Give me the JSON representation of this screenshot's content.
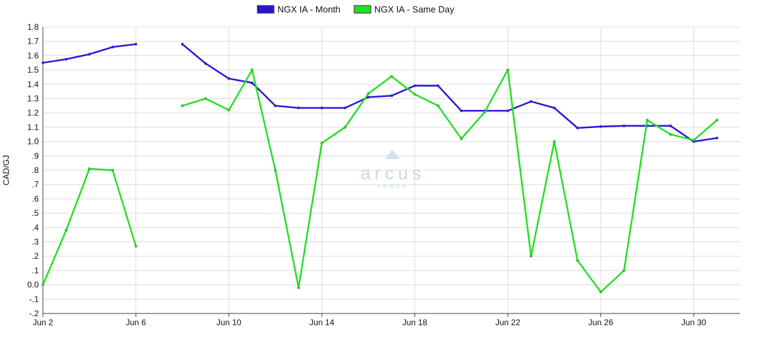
{
  "chart_data": {
    "type": "line",
    "ylabel": "CAD/GJ",
    "ylim": [
      -0.2,
      1.8
    ],
    "yticks": [
      {
        "value": 1.8,
        "label": "1.8"
      },
      {
        "value": 1.7,
        "label": "1.7"
      },
      {
        "value": 1.6,
        "label": "1.6"
      },
      {
        "value": 1.5,
        "label": "1.5"
      },
      {
        "value": 1.4,
        "label": "1.4"
      },
      {
        "value": 1.3,
        "label": "1.3"
      },
      {
        "value": 1.2,
        "label": "1.2"
      },
      {
        "value": 1.1,
        "label": "1.1"
      },
      {
        "value": 1.0,
        "label": "1.0"
      },
      {
        "value": 0.9,
        "label": ".9"
      },
      {
        "value": 0.8,
        "label": ".8"
      },
      {
        "value": 0.7,
        "label": ".7"
      },
      {
        "value": 0.6,
        "label": ".6"
      },
      {
        "value": 0.5,
        "label": ".5"
      },
      {
        "value": 0.4,
        "label": ".4"
      },
      {
        "value": 0.3,
        "label": ".3"
      },
      {
        "value": 0.2,
        "label": ".2"
      },
      {
        "value": 0.1,
        "label": ".1"
      },
      {
        "value": 0.0,
        "label": "0.0"
      },
      {
        "value": -0.1,
        "label": "-.1"
      },
      {
        "value": -0.2,
        "label": "-.2"
      }
    ],
    "xlim": [
      2,
      32
    ],
    "xticks": [
      {
        "day": 2,
        "label": "Jun 2"
      },
      {
        "day": 6,
        "label": "Jun 6"
      },
      {
        "day": 10,
        "label": "Jun 10"
      },
      {
        "day": 14,
        "label": "Jun 14"
      },
      {
        "day": 18,
        "label": "Jun 18"
      },
      {
        "day": 22,
        "label": "Jun 22"
      },
      {
        "day": 26,
        "label": "Jun 26"
      },
      {
        "day": 30,
        "label": "Jun 30"
      }
    ],
    "grid": true,
    "legend_position": "top-center",
    "series": [
      {
        "name": "NGX IA - Month",
        "color": "#2b14d9",
        "points": [
          {
            "day": 2,
            "value": 1.55
          },
          {
            "day": 3,
            "value": 1.575
          },
          {
            "day": 4,
            "value": 1.61
          },
          {
            "day": 5,
            "value": 1.66
          },
          {
            "day": 6,
            "value": 1.68
          },
          {
            "day": 7,
            "value": null
          },
          {
            "day": 8,
            "value": 1.68
          },
          {
            "day": 9,
            "value": 1.545
          },
          {
            "day": 10,
            "value": 1.44
          },
          {
            "day": 11,
            "value": 1.41
          },
          {
            "day": 12,
            "value": 1.25
          },
          {
            "day": 13,
            "value": 1.235
          },
          {
            "day": 14,
            "value": 1.235
          },
          {
            "day": 15,
            "value": 1.235
          },
          {
            "day": 16,
            "value": 1.31
          },
          {
            "day": 17,
            "value": 1.32
          },
          {
            "day": 18,
            "value": 1.39
          },
          {
            "day": 19,
            "value": 1.39
          },
          {
            "day": 20,
            "value": 1.215
          },
          {
            "day": 21,
            "value": 1.215
          },
          {
            "day": 22,
            "value": 1.215
          },
          {
            "day": 23,
            "value": 1.28
          },
          {
            "day": 24,
            "value": 1.235
          },
          {
            "day": 25,
            "value": 1.095
          },
          {
            "day": 26,
            "value": 1.105
          },
          {
            "day": 27,
            "value": 1.11
          },
          {
            "day": 28,
            "value": 1.11
          },
          {
            "day": 29,
            "value": 1.11
          },
          {
            "day": 30,
            "value": 1.0
          },
          {
            "day": 31,
            "value": 1.025
          }
        ]
      },
      {
        "name": "NGX IA - Same Day",
        "color": "#22e022",
        "points": [
          {
            "day": 2,
            "value": 0.0
          },
          {
            "day": 3,
            "value": 0.38
          },
          {
            "day": 4,
            "value": 0.81
          },
          {
            "day": 5,
            "value": 0.8
          },
          {
            "day": 6,
            "value": 0.27
          },
          {
            "day": 7,
            "value": null
          },
          {
            "day": 8,
            "value": 1.25
          },
          {
            "day": 9,
            "value": 1.3
          },
          {
            "day": 10,
            "value": 1.22
          },
          {
            "day": 11,
            "value": 1.5
          },
          {
            "day": 12,
            "value": 0.8
          },
          {
            "day": 13,
            "value": -0.02
          },
          {
            "day": 14,
            "value": 0.99
          },
          {
            "day": 15,
            "value": 1.1
          },
          {
            "day": 16,
            "value": 1.335
          },
          {
            "day": 17,
            "value": 1.455
          },
          {
            "day": 18,
            "value": 1.33
          },
          {
            "day": 19,
            "value": 1.25
          },
          {
            "day": 20,
            "value": 1.02
          },
          {
            "day": 21,
            "value": 1.205
          },
          {
            "day": 22,
            "value": 1.5
          },
          {
            "day": 23,
            "value": 0.2
          },
          {
            "day": 24,
            "value": 1.0
          },
          {
            "day": 25,
            "value": 0.17
          },
          {
            "day": 26,
            "value": -0.05
          },
          {
            "day": 27,
            "value": 0.1
          },
          {
            "day": 28,
            "value": 1.15
          },
          {
            "day": 29,
            "value": 1.05
          },
          {
            "day": 30,
            "value": 1.01
          },
          {
            "day": 31,
            "value": 1.15
          }
        ]
      }
    ]
  },
  "watermark": {
    "brand": "arcus",
    "sub": "POWER",
    "color": "#c9d7e6"
  },
  "colors": {
    "grid": "#dcdcdc",
    "axis": "#444444"
  }
}
